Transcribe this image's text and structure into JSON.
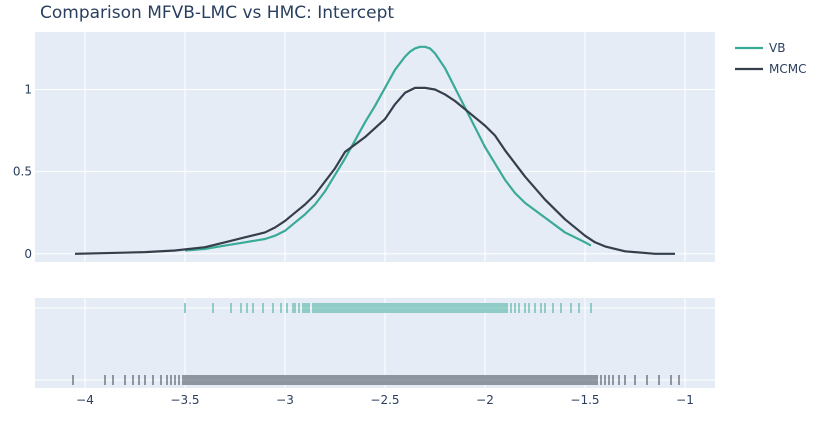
{
  "chart_data": {
    "type": "line",
    "title": "Comparison MFVB-LMC vs HMC: Intercept",
    "xlabel": "",
    "ylabel": "",
    "xlim": [
      -4.25,
      -0.85
    ],
    "ylim": [
      -0.05,
      1.35
    ],
    "x_ticks": [
      -4,
      -3.5,
      -3,
      -2.5,
      -2,
      -1.5,
      -1
    ],
    "x_tick_labels": [
      "−4",
      "−3.5",
      "−3",
      "−2.5",
      "−2",
      "−1.5",
      "−1"
    ],
    "y_ticks": [
      0,
      0.5,
      1
    ],
    "y_tick_labels": [
      "0",
      "0.5",
      "1"
    ],
    "grid": true,
    "legend_position": "top-right",
    "series": [
      {
        "name": "VB",
        "color": "#3aaa98",
        "x": [
          -3.5,
          -3.4,
          -3.3,
          -3.2,
          -3.1,
          -3.05,
          -3.0,
          -2.95,
          -2.9,
          -2.85,
          -2.8,
          -2.75,
          -2.7,
          -2.65,
          -2.6,
          -2.55,
          -2.5,
          -2.45,
          -2.4,
          -2.375,
          -2.35,
          -2.325,
          -2.3,
          -2.275,
          -2.25,
          -2.2,
          -2.15,
          -2.1,
          -2.05,
          -2.0,
          -1.95,
          -1.9,
          -1.85,
          -1.8,
          -1.7,
          -1.6,
          -1.5,
          -1.47
        ],
        "y": [
          0.02,
          0.03,
          0.05,
          0.07,
          0.09,
          0.11,
          0.14,
          0.19,
          0.24,
          0.3,
          0.38,
          0.48,
          0.58,
          0.69,
          0.8,
          0.9,
          1.01,
          1.12,
          1.2,
          1.23,
          1.25,
          1.26,
          1.26,
          1.25,
          1.22,
          1.13,
          1.01,
          0.89,
          0.77,
          0.65,
          0.55,
          0.45,
          0.37,
          0.31,
          0.22,
          0.13,
          0.07,
          0.05
        ]
      },
      {
        "name": "MCMC",
        "color": "#353e4b",
        "x": [
          -4.05,
          -3.7,
          -3.55,
          -3.4,
          -3.3,
          -3.2,
          -3.1,
          -3.05,
          -3.0,
          -2.95,
          -2.9,
          -2.85,
          -2.8,
          -2.75,
          -2.7,
          -2.6,
          -2.5,
          -2.45,
          -2.4,
          -2.35,
          -2.3,
          -2.25,
          -2.2,
          -2.15,
          -2.1,
          -2.05,
          -2.0,
          -1.95,
          -1.9,
          -1.85,
          -1.8,
          -1.7,
          -1.6,
          -1.5,
          -1.45,
          -1.4,
          -1.3,
          -1.2,
          -1.15,
          -1.05
        ],
        "y": [
          0.0,
          0.01,
          0.02,
          0.04,
          0.07,
          0.1,
          0.13,
          0.16,
          0.2,
          0.25,
          0.3,
          0.36,
          0.44,
          0.52,
          0.62,
          0.71,
          0.82,
          0.91,
          0.98,
          1.01,
          1.01,
          1.0,
          0.97,
          0.93,
          0.88,
          0.83,
          0.78,
          0.72,
          0.63,
          0.55,
          0.47,
          0.33,
          0.21,
          0.11,
          0.07,
          0.045,
          0.015,
          0.005,
          0.0,
          0.0
        ]
      }
    ],
    "rug": [
      {
        "name": "VB",
        "color": "#3aaa98",
        "row": 0,
        "values": [
          -3.5,
          -3.36,
          -3.27,
          -3.22,
          -3.19,
          -3.16,
          -3.11,
          -3.06,
          -3.02,
          -2.99,
          -2.96,
          -2.95,
          -2.93,
          -2.91,
          -2.9,
          -2.89,
          -2.88,
          -2.86,
          -2.85,
          -2.84,
          -2.83,
          -2.82,
          -2.81,
          -2.8,
          -2.79,
          -2.78,
          -2.77,
          -2.76,
          -2.75,
          -2.74,
          -2.73,
          -2.72,
          -2.71,
          -2.7,
          -2.69,
          -2.68,
          -2.67,
          -2.66,
          -2.65,
          -2.64,
          -2.63,
          -2.62,
          -2.61,
          -2.6,
          -2.59,
          -2.58,
          -2.57,
          -2.56,
          -2.55,
          -2.54,
          -2.53,
          -2.52,
          -2.51,
          -2.5,
          -2.49,
          -2.48,
          -2.47,
          -2.46,
          -2.45,
          -2.44,
          -2.43,
          -2.42,
          -2.41,
          -2.4,
          -2.39,
          -2.38,
          -2.37,
          -2.36,
          -2.35,
          -2.34,
          -2.33,
          -2.32,
          -2.31,
          -2.3,
          -2.29,
          -2.28,
          -2.27,
          -2.26,
          -2.25,
          -2.24,
          -2.23,
          -2.22,
          -2.21,
          -2.2,
          -2.19,
          -2.18,
          -2.17,
          -2.16,
          -2.15,
          -2.14,
          -2.13,
          -2.12,
          -2.11,
          -2.1,
          -2.09,
          -2.08,
          -2.07,
          -2.06,
          -2.05,
          -2.04,
          -2.03,
          -2.02,
          -2.01,
          -2.0,
          -1.99,
          -1.98,
          -1.97,
          -1.96,
          -1.95,
          -1.94,
          -1.93,
          -1.92,
          -1.91,
          -1.9,
          -1.89,
          -1.87,
          -1.85,
          -1.83,
          -1.8,
          -1.78,
          -1.75,
          -1.72,
          -1.7,
          -1.66,
          -1.62,
          -1.57,
          -1.53,
          -1.47
        ]
      },
      {
        "name": "MCMC",
        "color": "#353e4b",
        "row": 1,
        "values": [
          -4.06,
          -3.9,
          -3.86,
          -3.8,
          -3.76,
          -3.73,
          -3.7,
          -3.66,
          -3.62,
          -3.59,
          -3.57,
          -3.55,
          -3.53,
          -3.51,
          -3.5,
          -3.49,
          -3.48,
          -3.47,
          -3.46,
          -3.45,
          -3.44,
          -3.43,
          -3.42,
          -3.41,
          -3.4,
          -3.39,
          -3.38,
          -3.37,
          -3.36,
          -3.35,
          -3.34,
          -3.33,
          -3.32,
          -3.31,
          -3.3,
          -3.29,
          -3.28,
          -3.27,
          -3.26,
          -3.25,
          -3.24,
          -3.23,
          -3.22,
          -3.21,
          -3.2,
          -3.19,
          -3.18,
          -3.17,
          -3.16,
          -3.15,
          -3.14,
          -3.13,
          -3.12,
          -3.11,
          -3.1,
          -3.09,
          -3.08,
          -3.07,
          -3.06,
          -3.05,
          -3.04,
          -3.03,
          -3.02,
          -3.01,
          -3.0,
          -2.99,
          -2.98,
          -2.97,
          -2.96,
          -2.95,
          -2.94,
          -2.93,
          -2.92,
          -2.91,
          -2.9,
          -2.89,
          -2.88,
          -2.87,
          -2.86,
          -2.85,
          -2.84,
          -2.83,
          -2.82,
          -2.81,
          -2.8,
          -2.79,
          -2.78,
          -2.77,
          -2.76,
          -2.75,
          -2.74,
          -2.73,
          -2.72,
          -2.71,
          -2.7,
          -2.69,
          -2.68,
          -2.67,
          -2.66,
          -2.65,
          -2.64,
          -2.63,
          -2.62,
          -2.61,
          -2.6,
          -2.59,
          -2.58,
          -2.57,
          -2.56,
          -2.55,
          -2.54,
          -2.53,
          -2.52,
          -2.51,
          -2.5,
          -2.49,
          -2.48,
          -2.47,
          -2.46,
          -2.45,
          -2.44,
          -2.43,
          -2.42,
          -2.41,
          -2.4,
          -2.39,
          -2.38,
          -2.37,
          -2.36,
          -2.35,
          -2.34,
          -2.33,
          -2.32,
          -2.31,
          -2.3,
          -2.29,
          -2.28,
          -2.27,
          -2.26,
          -2.25,
          -2.24,
          -2.23,
          -2.22,
          -2.21,
          -2.2,
          -2.19,
          -2.18,
          -2.17,
          -2.16,
          -2.15,
          -2.14,
          -2.13,
          -2.12,
          -2.11,
          -2.1,
          -2.09,
          -2.08,
          -2.07,
          -2.06,
          -2.05,
          -2.04,
          -2.03,
          -2.02,
          -2.01,
          -2.0,
          -1.99,
          -1.98,
          -1.97,
          -1.96,
          -1.95,
          -1.94,
          -1.93,
          -1.92,
          -1.91,
          -1.9,
          -1.89,
          -1.88,
          -1.87,
          -1.86,
          -1.85,
          -1.84,
          -1.83,
          -1.82,
          -1.81,
          -1.8,
          -1.79,
          -1.78,
          -1.77,
          -1.76,
          -1.75,
          -1.74,
          -1.73,
          -1.72,
          -1.71,
          -1.7,
          -1.69,
          -1.68,
          -1.67,
          -1.66,
          -1.65,
          -1.64,
          -1.63,
          -1.62,
          -1.61,
          -1.6,
          -1.59,
          -1.58,
          -1.57,
          -1.56,
          -1.55,
          -1.54,
          -1.53,
          -1.52,
          -1.51,
          -1.5,
          -1.49,
          -1.48,
          -1.47,
          -1.46,
          -1.45,
          -1.44,
          -1.42,
          -1.4,
          -1.38,
          -1.36,
          -1.33,
          -1.3,
          -1.25,
          -1.19,
          -1.13,
          -1.07,
          -1.03
        ]
      }
    ]
  }
}
